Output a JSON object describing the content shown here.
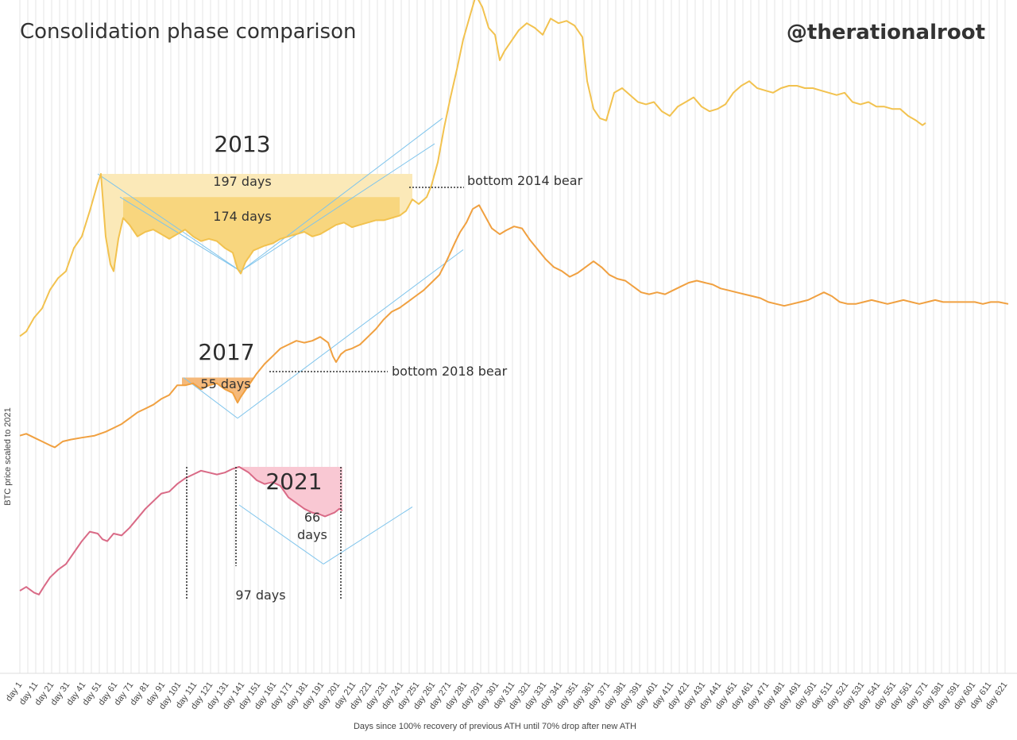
{
  "chart_data": {
    "type": "line",
    "title": "Consolidation phase comparison",
    "handle": "@therationalroot",
    "xlabel": "Days since 100% recovery of previous ATH until 70% drop after new ATH",
    "ylabel": "BTC price scaled to 2021",
    "xlim": [
      1,
      623
    ],
    "x_ticks": [
      "day 1",
      "day 11",
      "day 21",
      "day 31",
      "day 41",
      "day 51",
      "day 61",
      "day 71",
      "day 81",
      "day 91",
      "day 101",
      "day 111",
      "day 121",
      "day 131",
      "day 141",
      "day 151",
      "day 161",
      "day 171",
      "day 181",
      "day 191",
      "day 201",
      "day 211",
      "day 221",
      "day 231",
      "day 241",
      "day 251",
      "day 261",
      "day 271",
      "day 281",
      "day 291",
      "day 301",
      "day 311",
      "day 321",
      "day 331",
      "day 341",
      "day 351",
      "day 361",
      "day 371",
      "day 381",
      "day 391",
      "day 401",
      "day 411",
      "day 421",
      "day 431",
      "day 441",
      "day 451",
      "day 461",
      "day 471",
      "day 481",
      "day 491",
      "day 501",
      "day 511",
      "day 521",
      "day 531",
      "day 541",
      "day 551",
      "day 561",
      "day 571",
      "day 581",
      "day 591",
      "day 601",
      "day 611",
      "day 621"
    ],
    "grid": true,
    "series": [
      {
        "name": "2013",
        "color": "#f2c24f",
        "points": [
          [
            1,
            0.05
          ],
          [
            5,
            0.07
          ],
          [
            10,
            0.13
          ],
          [
            15,
            0.17
          ],
          [
            20,
            0.25
          ],
          [
            25,
            0.3
          ],
          [
            30,
            0.33
          ],
          [
            35,
            0.43
          ],
          [
            40,
            0.48
          ],
          [
            45,
            0.59
          ],
          [
            50,
            0.71
          ],
          [
            52,
            0.75
          ],
          [
            55,
            0.48
          ],
          [
            58,
            0.36
          ],
          [
            60,
            0.33
          ],
          [
            63,
            0.47
          ],
          [
            66,
            0.56
          ],
          [
            70,
            0.53
          ],
          [
            75,
            0.48
          ],
          [
            80,
            0.5
          ],
          [
            85,
            0.51
          ],
          [
            90,
            0.49
          ],
          [
            95,
            0.47
          ],
          [
            100,
            0.49
          ],
          [
            105,
            0.51
          ],
          [
            110,
            0.48
          ],
          [
            115,
            0.46
          ],
          [
            120,
            0.47
          ],
          [
            125,
            0.46
          ],
          [
            130,
            0.43
          ],
          [
            135,
            0.41
          ],
          [
            138,
            0.34
          ],
          [
            140,
            0.32
          ],
          [
            143,
            0.37
          ],
          [
            148,
            0.42
          ],
          [
            155,
            0.44
          ],
          [
            160,
            0.45
          ],
          [
            165,
            0.47
          ],
          [
            170,
            0.48
          ],
          [
            175,
            0.49
          ],
          [
            180,
            0.5
          ],
          [
            185,
            0.48
          ],
          [
            190,
            0.49
          ],
          [
            195,
            0.51
          ],
          [
            200,
            0.53
          ],
          [
            205,
            0.54
          ],
          [
            210,
            0.52
          ],
          [
            215,
            0.53
          ],
          [
            220,
            0.54
          ],
          [
            225,
            0.55
          ],
          [
            230,
            0.55
          ],
          [
            235,
            0.56
          ],
          [
            240,
            0.57
          ],
          [
            244,
            0.59
          ],
          [
            248,
            0.64
          ],
          [
            252,
            0.62
          ],
          [
            257,
            0.65
          ],
          [
            260,
            0.7
          ],
          [
            264,
            0.8
          ],
          [
            268,
            0.95
          ],
          [
            272,
            1.08
          ],
          [
            276,
            1.2
          ],
          [
            280,
            1.33
          ],
          [
            285,
            1.45
          ],
          [
            288,
            1.52
          ],
          [
            292,
            1.47
          ],
          [
            296,
            1.38
          ],
          [
            300,
            1.35
          ],
          [
            303,
            1.24
          ],
          [
            306,
            1.28
          ],
          [
            310,
            1.32
          ],
          [
            315,
            1.37
          ],
          [
            320,
            1.4
          ],
          [
            325,
            1.38
          ],
          [
            330,
            1.35
          ],
          [
            335,
            1.42
          ],
          [
            340,
            1.4
          ],
          [
            345,
            1.41
          ],
          [
            350,
            1.39
          ],
          [
            355,
            1.34
          ],
          [
            358,
            1.15
          ],
          [
            362,
            1.03
          ],
          [
            366,
            0.99
          ],
          [
            370,
            0.98
          ],
          [
            375,
            1.1
          ],
          [
            380,
            1.12
          ],
          [
            385,
            1.09
          ],
          [
            390,
            1.06
          ],
          [
            395,
            1.05
          ],
          [
            400,
            1.06
          ],
          [
            405,
            1.02
          ],
          [
            410,
            1.0
          ],
          [
            415,
            1.04
          ],
          [
            420,
            1.06
          ],
          [
            425,
            1.08
          ],
          [
            430,
            1.04
          ],
          [
            435,
            1.02
          ],
          [
            440,
            1.03
          ],
          [
            445,
            1.05
          ],
          [
            450,
            1.1
          ],
          [
            455,
            1.13
          ],
          [
            460,
            1.15
          ],
          [
            465,
            1.12
          ],
          [
            470,
            1.11
          ],
          [
            475,
            1.1
          ],
          [
            480,
            1.12
          ],
          [
            485,
            1.13
          ],
          [
            490,
            1.13
          ],
          [
            495,
            1.12
          ],
          [
            500,
            1.12
          ],
          [
            505,
            1.11
          ],
          [
            510,
            1.1
          ],
          [
            515,
            1.09
          ],
          [
            520,
            1.1
          ],
          [
            525,
            1.06
          ],
          [
            530,
            1.05
          ],
          [
            535,
            1.06
          ],
          [
            540,
            1.04
          ],
          [
            545,
            1.04
          ],
          [
            550,
            1.03
          ],
          [
            555,
            1.03
          ],
          [
            560,
            1.0
          ],
          [
            565,
            0.98
          ],
          [
            569,
            0.96
          ],
          [
            571,
            0.97
          ]
        ]
      },
      {
        "name": "2017",
        "color": "#f0a040",
        "points": [
          [
            1,
            0.12
          ],
          [
            5,
            0.13
          ],
          [
            10,
            0.11
          ],
          [
            15,
            0.09
          ],
          [
            20,
            0.07
          ],
          [
            23,
            0.06
          ],
          [
            28,
            0.09
          ],
          [
            33,
            0.1
          ],
          [
            40,
            0.11
          ],
          [
            48,
            0.12
          ],
          [
            55,
            0.14
          ],
          [
            60,
            0.16
          ],
          [
            65,
            0.18
          ],
          [
            70,
            0.21
          ],
          [
            75,
            0.24
          ],
          [
            80,
            0.26
          ],
          [
            85,
            0.28
          ],
          [
            90,
            0.31
          ],
          [
            95,
            0.33
          ],
          [
            100,
            0.38
          ],
          [
            105,
            0.38
          ],
          [
            110,
            0.39
          ],
          [
            115,
            0.36
          ],
          [
            120,
            0.38
          ],
          [
            125,
            0.39
          ],
          [
            130,
            0.36
          ],
          [
            135,
            0.34
          ],
          [
            138,
            0.29
          ],
          [
            140,
            0.32
          ],
          [
            145,
            0.38
          ],
          [
            150,
            0.44
          ],
          [
            155,
            0.49
          ],
          [
            160,
            0.53
          ],
          [
            165,
            0.57
          ],
          [
            170,
            0.59
          ],
          [
            175,
            0.61
          ],
          [
            180,
            0.6
          ],
          [
            185,
            0.61
          ],
          [
            190,
            0.63
          ],
          [
            195,
            0.6
          ],
          [
            198,
            0.53
          ],
          [
            200,
            0.5
          ],
          [
            203,
            0.54
          ],
          [
            206,
            0.56
          ],
          [
            210,
            0.57
          ],
          [
            215,
            0.59
          ],
          [
            220,
            0.63
          ],
          [
            225,
            0.67
          ],
          [
            230,
            0.72
          ],
          [
            235,
            0.76
          ],
          [
            240,
            0.78
          ],
          [
            245,
            0.81
          ],
          [
            250,
            0.84
          ],
          [
            255,
            0.87
          ],
          [
            260,
            0.91
          ],
          [
            265,
            0.95
          ],
          [
            270,
            1.03
          ],
          [
            275,
            1.12
          ],
          [
            278,
            1.17
          ],
          [
            282,
            1.22
          ],
          [
            286,
            1.29
          ],
          [
            290,
            1.31
          ],
          [
            294,
            1.25
          ],
          [
            298,
            1.19
          ],
          [
            303,
            1.16
          ],
          [
            307,
            1.18
          ],
          [
            312,
            1.2
          ],
          [
            317,
            1.19
          ],
          [
            322,
            1.13
          ],
          [
            327,
            1.08
          ],
          [
            332,
            1.03
          ],
          [
            337,
            0.99
          ],
          [
            342,
            0.97
          ],
          [
            347,
            0.94
          ],
          [
            352,
            0.96
          ],
          [
            357,
            0.99
          ],
          [
            362,
            1.02
          ],
          [
            367,
            0.99
          ],
          [
            372,
            0.95
          ],
          [
            377,
            0.93
          ],
          [
            382,
            0.92
          ],
          [
            387,
            0.89
          ],
          [
            392,
            0.86
          ],
          [
            397,
            0.85
          ],
          [
            402,
            0.86
          ],
          [
            407,
            0.85
          ],
          [
            412,
            0.87
          ],
          [
            417,
            0.89
          ],
          [
            422,
            0.91
          ],
          [
            427,
            0.92
          ],
          [
            432,
            0.91
          ],
          [
            437,
            0.9
          ],
          [
            442,
            0.88
          ],
          [
            447,
            0.87
          ],
          [
            452,
            0.86
          ],
          [
            457,
            0.85
          ],
          [
            462,
            0.84
          ],
          [
            467,
            0.83
          ],
          [
            472,
            0.81
          ],
          [
            477,
            0.8
          ],
          [
            482,
            0.79
          ],
          [
            487,
            0.8
          ],
          [
            492,
            0.81
          ],
          [
            497,
            0.82
          ],
          [
            502,
            0.84
          ],
          [
            507,
            0.86
          ],
          [
            512,
            0.84
          ],
          [
            517,
            0.81
          ],
          [
            522,
            0.8
          ],
          [
            527,
            0.8
          ],
          [
            532,
            0.81
          ],
          [
            537,
            0.82
          ],
          [
            542,
            0.81
          ],
          [
            547,
            0.8
          ],
          [
            552,
            0.81
          ],
          [
            557,
            0.82
          ],
          [
            562,
            0.81
          ],
          [
            567,
            0.8
          ],
          [
            572,
            0.81
          ],
          [
            577,
            0.82
          ],
          [
            582,
            0.81
          ],
          [
            587,
            0.81
          ],
          [
            592,
            0.81
          ],
          [
            597,
            0.81
          ],
          [
            602,
            0.81
          ],
          [
            607,
            0.8
          ],
          [
            612,
            0.81
          ],
          [
            617,
            0.81
          ],
          [
            623,
            0.8
          ]
        ]
      },
      {
        "name": "2021",
        "color": "#d96a86",
        "points": [
          [
            1,
            0.15
          ],
          [
            5,
            0.17
          ],
          [
            10,
            0.14
          ],
          [
            13,
            0.13
          ],
          [
            16,
            0.17
          ],
          [
            20,
            0.22
          ],
          [
            25,
            0.26
          ],
          [
            30,
            0.29
          ],
          [
            35,
            0.35
          ],
          [
            40,
            0.41
          ],
          [
            45,
            0.46
          ],
          [
            50,
            0.45
          ],
          [
            53,
            0.42
          ],
          [
            56,
            0.41
          ],
          [
            60,
            0.45
          ],
          [
            65,
            0.44
          ],
          [
            70,
            0.48
          ],
          [
            75,
            0.53
          ],
          [
            80,
            0.58
          ],
          [
            85,
            0.62
          ],
          [
            90,
            0.66
          ],
          [
            95,
            0.67
          ],
          [
            100,
            0.71
          ],
          [
            105,
            0.74
          ],
          [
            110,
            0.76
          ],
          [
            115,
            0.78
          ],
          [
            120,
            0.77
          ],
          [
            125,
            0.76
          ],
          [
            130,
            0.77
          ],
          [
            135,
            0.79
          ],
          [
            139,
            0.8
          ],
          [
            141,
            0.79
          ],
          [
            145,
            0.77
          ],
          [
            150,
            0.73
          ],
          [
            155,
            0.71
          ],
          [
            160,
            0.72
          ],
          [
            165,
            0.7
          ],
          [
            170,
            0.64
          ],
          [
            175,
            0.61
          ],
          [
            180,
            0.58
          ],
          [
            185,
            0.56
          ],
          [
            190,
            0.55
          ],
          [
            193,
            0.54
          ],
          [
            196,
            0.55
          ],
          [
            199,
            0.56
          ],
          [
            202,
            0.58
          ],
          [
            204,
            0.57
          ]
        ]
      }
    ],
    "annotations": {
      "y2013": "2013",
      "y2017": "2017",
      "y2021": "2021",
      "d197": "197 days",
      "d174": "174 days",
      "bear2014": "bottom 2014 bear",
      "d55": "55 days",
      "bear2018": "bottom 2018 bear",
      "d66a": "66",
      "d66b": "days",
      "d97": "97 days"
    },
    "fill_colors": {
      "light2013": "#fbe9b8",
      "dark2013": "#f8d67e",
      "fill2017": "#f5b97a",
      "fill2021": "#f9c8d3",
      "guide": "#7ec4ec"
    }
  }
}
